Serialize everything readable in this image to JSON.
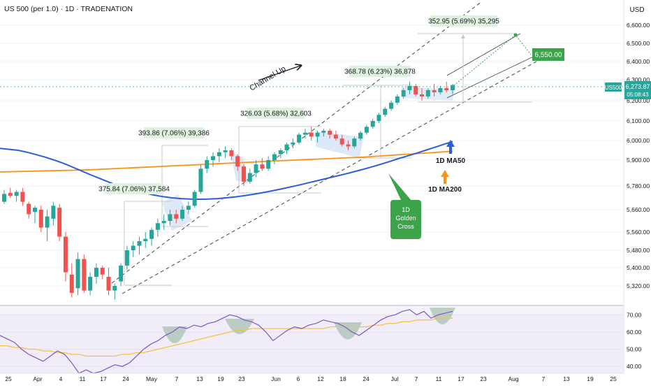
{
  "header": {
    "title": "US 500 (per 1.0) · 1D · TRADENATION"
  },
  "currency_label": "USD",
  "price_badge": {
    "ticker": "US500",
    "price": "6,273.87",
    "countdown": "05:08:43"
  },
  "colors": {
    "up": "#26a69a",
    "down": "#ef5350",
    "ma50": "#2c5ddb",
    "ma200": "#f7931a",
    "rsi_line": "#7e57c2",
    "rsi_avg": "#f5c342",
    "annotation_green": "#3ca34a",
    "channel_fill": "#cfe0f5",
    "rsi_band": "#ece6f6"
  },
  "annotations": {
    "channel": "Channel Up",
    "m1": "375.84 (7.06%) 37,584",
    "m2": "393.86 (7.06%) 39,386",
    "m3": "326.03 (5.68%) 32,603",
    "m4": "368.78 (6.23%) 36,878",
    "m5": "352.95 (5.69%) 35,295",
    "target": "6,550.00",
    "ma50": "1D MA50",
    "ma200": "1D MA200",
    "golden1": "1D",
    "golden2": "Golden",
    "golden3": "Cross"
  },
  "chart_data": {
    "type": "candlestick",
    "title": "US 500 (per 1.0) · 1D · TRADENATION",
    "price_axis": {
      "unit": "USD",
      "ticks": [
        "6,600.00",
        "6,500.00",
        "6,400.00",
        "6,300.00",
        "6,200.00",
        "6,100.00",
        "6,000.00",
        "5,900.00",
        "5,780.00",
        "5,660.00",
        "5,560.00",
        "5,480.00",
        "5,400.00",
        "5,320.00"
      ]
    },
    "rsi_axis": {
      "ticks": [
        "70.00",
        "60.00",
        "50.00",
        "40.00"
      ],
      "band": [
        30,
        70
      ]
    },
    "time_axis": {
      "ticks": [
        "25",
        "Apr",
        "4",
        "11",
        "17",
        "24",
        "May",
        "7",
        "13",
        "19",
        "23",
        "Jun",
        "6",
        "12",
        "18",
        "24",
        "Jul",
        "7",
        "11",
        "17",
        "23",
        "Aug",
        "7",
        "13",
        "19",
        "25"
      ]
    },
    "candles": [
      [
        5700,
        5760,
        5690,
        5740
      ],
      [
        5745,
        5770,
        5720,
        5730
      ],
      [
        5730,
        5760,
        5700,
        5750
      ],
      [
        5750,
        5770,
        5680,
        5700
      ],
      [
        5690,
        5700,
        5620,
        5640
      ],
      [
        5650,
        5680,
        5600,
        5670
      ],
      [
        5660,
        5680,
        5560,
        5580
      ],
      [
        5580,
        5660,
        5520,
        5630
      ],
      [
        5620,
        5700,
        5590,
        5680
      ],
      [
        5670,
        5690,
        5520,
        5540
      ],
      [
        5540,
        5560,
        5340,
        5380
      ],
      [
        5370,
        5420,
        5270,
        5290
      ],
      [
        5310,
        5470,
        5280,
        5440
      ],
      [
        5440,
        5460,
        5290,
        5300
      ],
      [
        5300,
        5380,
        5280,
        5360
      ],
      [
        5360,
        5420,
        5330,
        5400
      ],
      [
        5400,
        5410,
        5350,
        5370
      ],
      [
        5360,
        5400,
        5280,
        5300
      ],
      [
        5300,
        5330,
        5260,
        5320
      ],
      [
        5340,
        5420,
        5320,
        5410
      ],
      [
        5410,
        5500,
        5390,
        5480
      ],
      [
        5480,
        5520,
        5450,
        5500
      ],
      [
        5500,
        5540,
        5460,
        5520
      ],
      [
        5520,
        5560,
        5490,
        5530
      ],
      [
        5530,
        5580,
        5500,
        5570
      ],
      [
        5570,
        5620,
        5540,
        5600
      ],
      [
        5600,
        5640,
        5570,
        5610
      ],
      [
        5610,
        5660,
        5590,
        5640
      ],
      [
        5640,
        5660,
        5600,
        5620
      ],
      [
        5620,
        5680,
        5610,
        5660
      ],
      [
        5660,
        5700,
        5640,
        5680
      ],
      [
        5680,
        5760,
        5670,
        5750
      ],
      [
        5750,
        5880,
        5740,
        5860
      ],
      [
        5860,
        5920,
        5840,
        5900
      ],
      [
        5900,
        5940,
        5870,
        5920
      ],
      [
        5920,
        5960,
        5890,
        5940
      ],
      [
        5940,
        5970,
        5910,
        5950
      ],
      [
        5950,
        5960,
        5900,
        5920
      ],
      [
        5920,
        5930,
        5850,
        5870
      ],
      [
        5870,
        5880,
        5780,
        5800
      ],
      [
        5800,
        5860,
        5790,
        5840
      ],
      [
        5840,
        5900,
        5820,
        5880
      ],
      [
        5880,
        5910,
        5850,
        5860
      ],
      [
        5860,
        5920,
        5850,
        5900
      ],
      [
        5900,
        5940,
        5880,
        5930
      ],
      [
        5930,
        5960,
        5910,
        5950
      ],
      [
        5950,
        5990,
        5930,
        5980
      ],
      [
        5980,
        6010,
        5960,
        5990
      ],
      [
        5990,
        6040,
        5980,
        6030
      ],
      [
        6030,
        6060,
        6010,
        6040
      ],
      [
        6040,
        6070,
        6000,
        6020
      ],
      [
        6020,
        6050,
        5990,
        6040
      ],
      [
        6040,
        6060,
        6020,
        6050
      ],
      [
        6050,
        6060,
        6010,
        6030
      ],
      [
        6030,
        6050,
        6000,
        6010
      ],
      [
        6010,
        6030,
        5970,
        5980
      ],
      [
        5980,
        6000,
        5950,
        5970
      ],
      [
        5970,
        6020,
        5960,
        6010
      ],
      [
        6010,
        6050,
        6000,
        6040
      ],
      [
        6040,
        6080,
        6030,
        6070
      ],
      [
        6070,
        6110,
        6060,
        6100
      ],
      [
        6100,
        6140,
        6090,
        6130
      ],
      [
        6130,
        6170,
        6120,
        6160
      ],
      [
        6160,
        6200,
        6150,
        6190
      ],
      [
        6190,
        6230,
        6180,
        6220
      ],
      [
        6220,
        6260,
        6210,
        6250
      ],
      [
        6250,
        6290,
        6230,
        6270
      ],
      [
        6270,
        6280,
        6220,
        6230
      ],
      [
        6230,
        6260,
        6200,
        6220
      ],
      [
        6220,
        6260,
        6210,
        6250
      ],
      [
        6250,
        6280,
        6220,
        6240
      ],
      [
        6240,
        6270,
        6230,
        6260
      ],
      [
        6260,
        6290,
        6240,
        6250
      ],
      [
        6250,
        6280,
        6230,
        6274
      ]
    ],
    "ma50": [
      5960,
      5955,
      5950,
      5940,
      5928,
      5915,
      5900,
      5885,
      5868,
      5850,
      5832,
      5815,
      5798,
      5782,
      5768,
      5755,
      5744,
      5734,
      5726,
      5720,
      5716,
      5714,
      5713,
      5714,
      5716,
      5720,
      5725,
      5731,
      5738,
      5746,
      5755,
      5764,
      5774,
      5784,
      5794,
      5804,
      5814,
      5824,
      5834,
      5845,
      5856,
      5868,
      5880,
      5893,
      5907,
      5921,
      5935,
      5950,
      5965,
      5980,
      5995
    ],
    "ma200": [
      5845,
      5846,
      5847,
      5848,
      5849,
      5850,
      5851,
      5852,
      5853,
      5854,
      5855,
      5857,
      5859,
      5861,
      5863,
      5865,
      5867,
      5869,
      5871,
      5873,
      5875,
      5877,
      5879,
      5881,
      5883,
      5885,
      5887,
      5889,
      5891,
      5893,
      5895,
      5897,
      5899,
      5901,
      5903,
      5905,
      5907,
      5909,
      5911,
      5913,
      5915,
      5918,
      5921,
      5924,
      5927,
      5930,
      5933,
      5936,
      5939,
      5942,
      5945
    ],
    "rsi": [
      58,
      56,
      54,
      50,
      47,
      45,
      43,
      46,
      49,
      47,
      42,
      36,
      38,
      36,
      37,
      39,
      41,
      40,
      42,
      46,
      50,
      53,
      55,
      58,
      60,
      63,
      62,
      64,
      63,
      65,
      66,
      68,
      70,
      69,
      67,
      66,
      64,
      60,
      55,
      58,
      61,
      63,
      62,
      64,
      65,
      67,
      66,
      65,
      63,
      60,
      58,
      61,
      64,
      67,
      69,
      70,
      72,
      73,
      70,
      72,
      68,
      70,
      71,
      72
    ],
    "rsi_avg": [
      52,
      52,
      51,
      51,
      50,
      50,
      49,
      49,
      48,
      48,
      47,
      47,
      46,
      46,
      46,
      46,
      46,
      47,
      47,
      48,
      48,
      49,
      50,
      51,
      52,
      53,
      54,
      55,
      56,
      57,
      58,
      59,
      60,
      61,
      61,
      62,
      62,
      62,
      62,
      62,
      62,
      62,
      62,
      62,
      62,
      62,
      63,
      63,
      63,
      63,
      63,
      63,
      64,
      64,
      65,
      65,
      66,
      66,
      67,
      67,
      67,
      68,
      68,
      68
    ]
  }
}
